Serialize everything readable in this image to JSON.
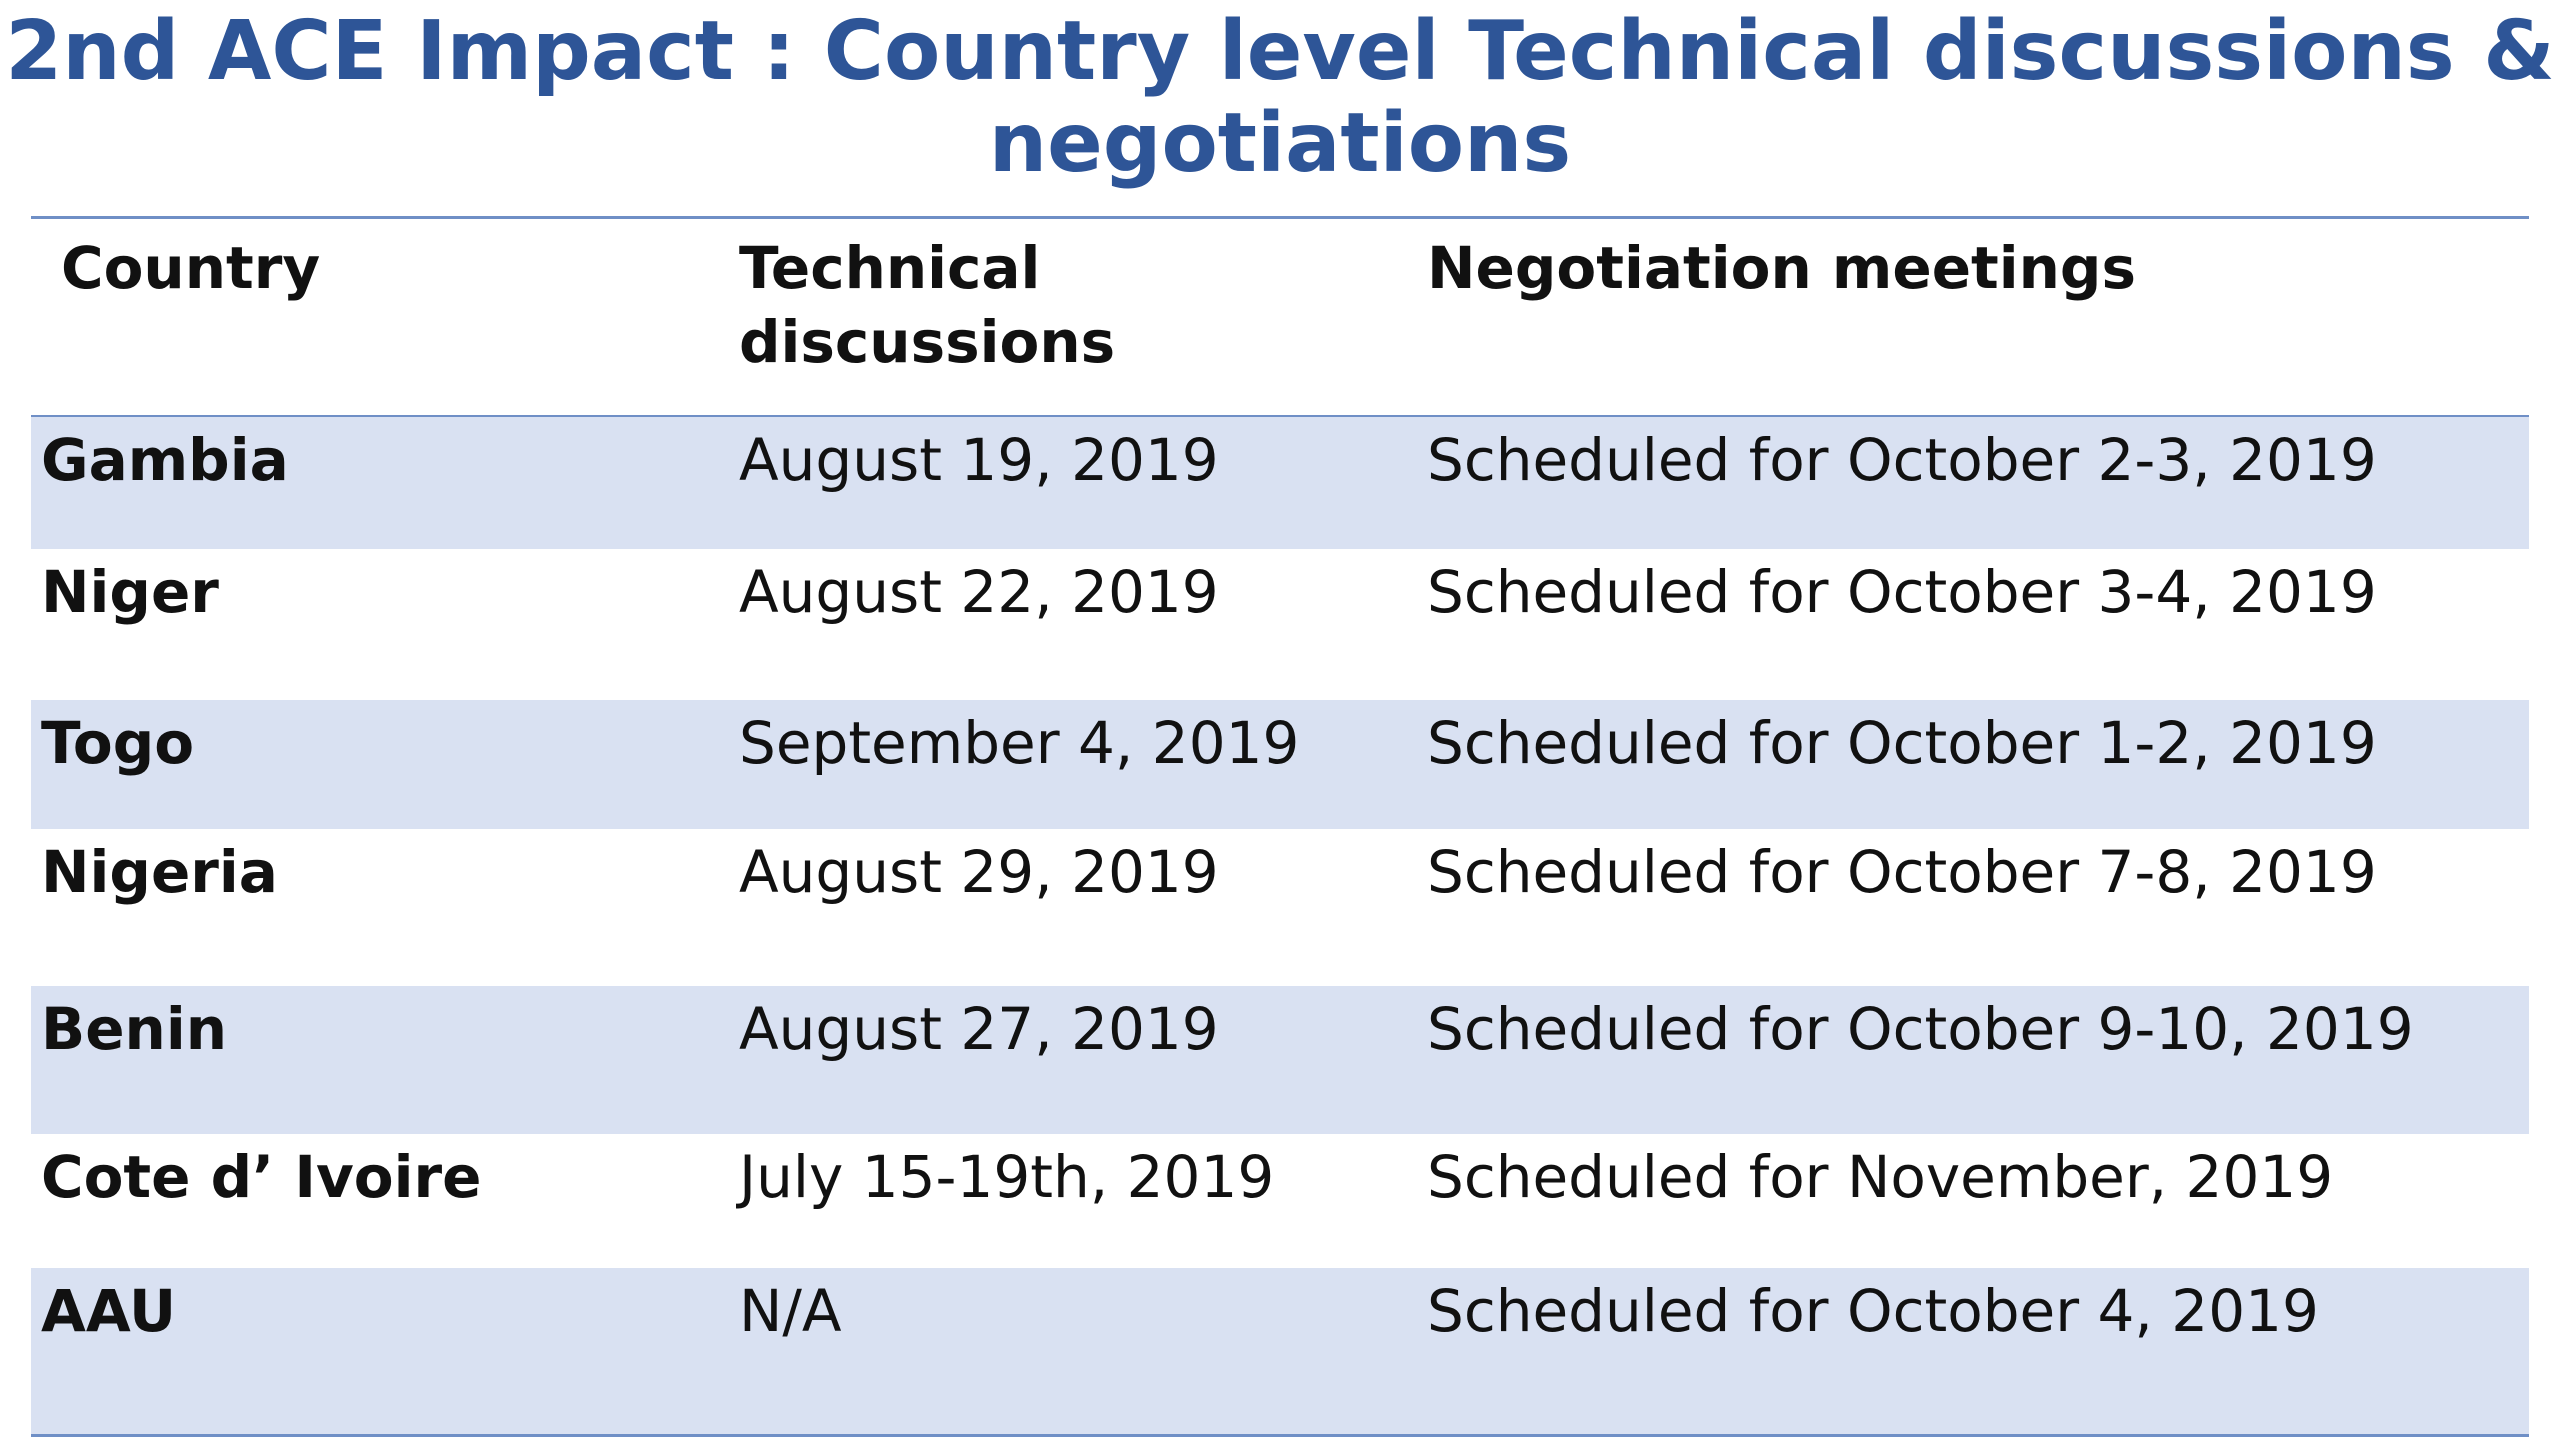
{
  "title": "2nd ACE Impact : Country level Technical discussions & negotiations",
  "table": {
    "headers": {
      "country": "Country",
      "technical": "Technical discussions",
      "negotiation": "Negotiation meetings"
    },
    "rows": [
      {
        "country": "Gambia",
        "technical": "August 19, 2019",
        "negotiation": "Scheduled for October 2-3, 2019"
      },
      {
        "country": "Niger",
        "technical": "August 22, 2019",
        "negotiation": "Scheduled for October 3-4, 2019"
      },
      {
        "country": "Togo",
        "technical": "September 4, 2019",
        "negotiation": "Scheduled for October 1-2, 2019"
      },
      {
        "country": "Nigeria",
        "technical": "August 29, 2019",
        "negotiation": "Scheduled for October 7-8, 2019"
      },
      {
        "country": "Benin",
        "technical": "August 27, 2019",
        "negotiation": "Scheduled for October 9-10, 2019"
      },
      {
        "country": "Cote d’ Ivoire",
        "technical": "July 15-19th, 2019",
        "negotiation": "Scheduled for November, 2019"
      },
      {
        "country": "AAU",
        "technical": "N/A",
        "negotiation": "Scheduled for October 4, 2019"
      }
    ]
  },
  "colors": {
    "title": "#2e5597",
    "row_shade": "#d9e1f2",
    "rule": "#6f8fc6"
  }
}
